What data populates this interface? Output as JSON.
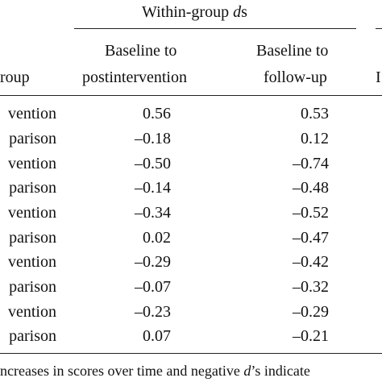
{
  "table": {
    "spanner": {
      "prefix": "Within-group ",
      "italic": "d",
      "suffix": "s"
    },
    "columns": {
      "group": "roup",
      "post_line1": "Baseline to",
      "post_line2": "postintervention",
      "fu_line1": "Baseline to",
      "fu_line2": "follow-up",
      "right_edge": "I"
    },
    "rows": [
      {
        "group": "vention",
        "post": "0.56",
        "fu": "0.53"
      },
      {
        "group": "parison",
        "post": "–0.18",
        "fu": "0.12"
      },
      {
        "group": "vention",
        "post": "–0.50",
        "fu": "–0.74"
      },
      {
        "group": "parison",
        "post": "–0.14",
        "fu": "–0.48"
      },
      {
        "group": "vention",
        "post": "–0.34",
        "fu": "–0.52"
      },
      {
        "group": "parison",
        "post": "0.02",
        "fu": "–0.47"
      },
      {
        "group": "vention",
        "post": "–0.29",
        "fu": "–0.42"
      },
      {
        "group": "parison",
        "post": "–0.07",
        "fu": "–0.32"
      },
      {
        "group": "vention",
        "post": "–0.23",
        "fu": "–0.29"
      },
      {
        "group": "parison",
        "post": "0.07",
        "fu": "–0.21"
      }
    ],
    "footnote": {
      "part1": "ncreases in scores over time and negative ",
      "italic": "d",
      "part2": "’s indicate"
    }
  }
}
